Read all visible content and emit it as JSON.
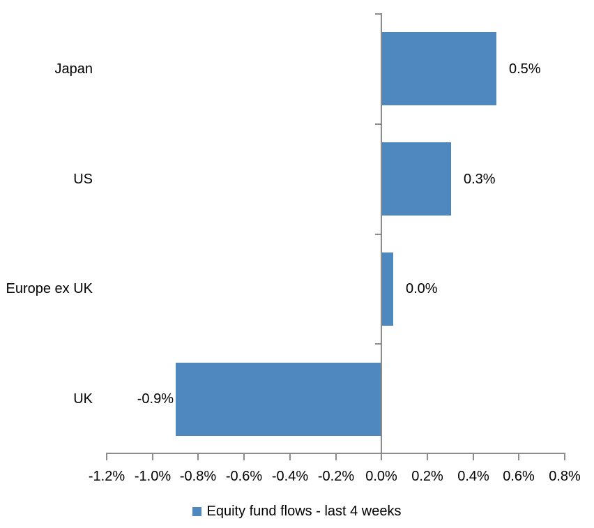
{
  "chart_data": {
    "type": "bar",
    "orientation": "horizontal",
    "title": "",
    "xlabel": "",
    "ylabel": "",
    "categories": [
      "Japan",
      "US",
      "Europe ex UK",
      "UK"
    ],
    "series": [
      {
        "name": "Equity fund flows - last 4 weeks",
        "values": [
          0.5,
          0.3,
          0.05,
          -0.9
        ],
        "labels": [
          "0.5%",
          "0.3%",
          "0.0%",
          "-0.9%"
        ]
      }
    ],
    "x_axis": {
      "min": -1.2,
      "max": 0.8,
      "tick_step": 0.2,
      "tick_labels": [
        "-1.2%",
        "-1.0%",
        "-0.8%",
        "-0.6%",
        "-0.4%",
        "-0.2%",
        "0.0%",
        "0.2%",
        "0.4%",
        "0.6%",
        "0.8%"
      ],
      "format": "percent"
    },
    "grid": false,
    "legend_position": "bottom",
    "colors": {
      "bar_fill": "#4E88BE",
      "axis_line": "#8C8C8C",
      "text": "#000000",
      "background": "#FFFFFF"
    }
  }
}
